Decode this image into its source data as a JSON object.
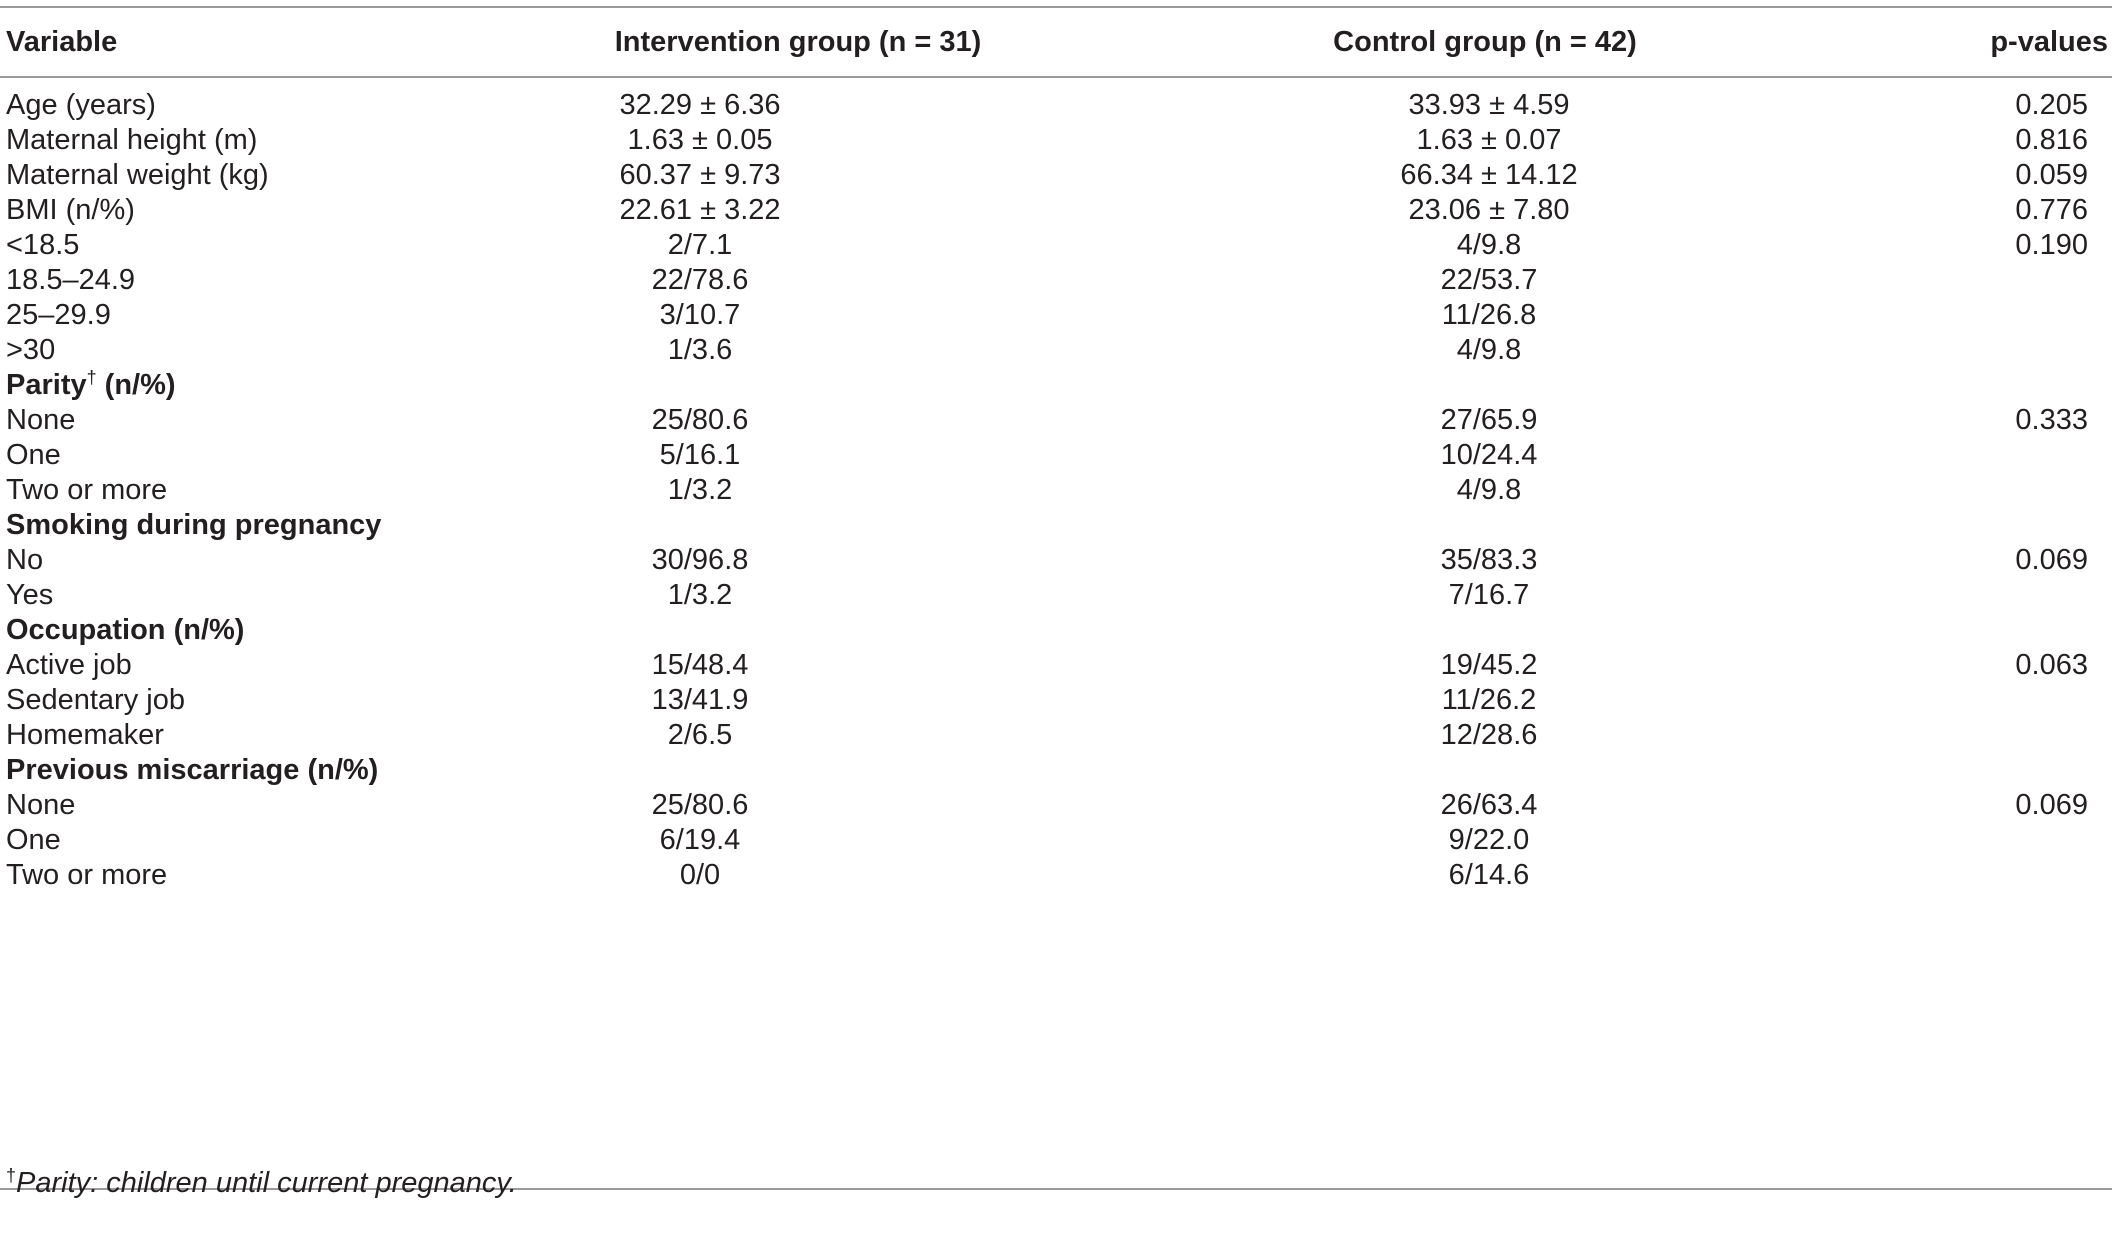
{
  "header": {
    "variable": "Variable",
    "intervention": "Intervention group (n = 31)",
    "control": "Control group (n = 42)",
    "pvalues": "p-values"
  },
  "rows": [
    {
      "label": "Age (years)",
      "intervention": "32.29 ± 6.36",
      "control": "33.93 ± 4.59",
      "p": "0.205",
      "section": false
    },
    {
      "label": "Maternal height (m)",
      "intervention": "1.63 ± 0.05",
      "control": "1.63 ± 0.07",
      "p": "0.816",
      "section": false
    },
    {
      "label": "Maternal weight (kg)",
      "intervention": "60.37 ± 9.73",
      "control": "66.34 ± 14.12",
      "p": "0.059",
      "section": false
    },
    {
      "label": "BMI (n/%)",
      "intervention": "22.61 ± 3.22",
      "control": "23.06 ± 7.80",
      "p": "0.776",
      "section": false
    },
    {
      "label": "<18.5",
      "intervention": "2/7.1",
      "control": "4/9.8",
      "p": "0.190",
      "section": false
    },
    {
      "label": "18.5–24.9",
      "intervention": "22/78.6",
      "control": "22/53.7",
      "p": "",
      "section": false
    },
    {
      "label": "25–29.9",
      "intervention": "3/10.7",
      "control": "11/26.8",
      "p": "",
      "section": false
    },
    {
      "label": ">30",
      "intervention": "1/3.6",
      "control": "4/9.8",
      "p": "",
      "section": false
    },
    {
      "label": "Parity",
      "mark": "†",
      "label_suffix": " (n/%)",
      "intervention": "",
      "control": "",
      "p": "",
      "section": true
    },
    {
      "label": "None",
      "intervention": "25/80.6",
      "control": "27/65.9",
      "p": "0.333",
      "section": false
    },
    {
      "label": "One",
      "intervention": "5/16.1",
      "control": "10/24.4",
      "p": "",
      "section": false
    },
    {
      "label": "Two or more",
      "intervention": "1/3.2",
      "control": "4/9.8",
      "p": "",
      "section": false
    },
    {
      "label": "Smoking during pregnancy",
      "intervention": "",
      "control": "",
      "p": "",
      "section": true
    },
    {
      "label": "No",
      "intervention": "30/96.8",
      "control": "35/83.3",
      "p": "0.069",
      "section": false
    },
    {
      "label": "Yes",
      "intervention": "1/3.2",
      "control": "7/16.7",
      "p": "",
      "section": false
    },
    {
      "label": "Occupation (n/%)",
      "intervention": "",
      "control": "",
      "p": "",
      "section": true
    },
    {
      "label": "Active job",
      "intervention": "15/48.4",
      "control": "19/45.2",
      "p": "0.063",
      "section": false
    },
    {
      "label": "Sedentary job",
      "intervention": "13/41.9",
      "control": "11/26.2",
      "p": "",
      "section": false
    },
    {
      "label": "Homemaker",
      "intervention": "2/6.5",
      "control": "12/28.6",
      "p": "",
      "section": false
    },
    {
      "label": "Previous miscarriage (n/%)",
      "intervention": "",
      "control": "",
      "p": "",
      "section": true
    },
    {
      "label": "None",
      "intervention": "25/80.6",
      "control": "26/63.4",
      "p": "0.069",
      "section": false
    },
    {
      "label": "One",
      "intervention": "6/19.4",
      "control": "9/22.0",
      "p": "",
      "section": false
    },
    {
      "label": "Two or more",
      "intervention": "0/0",
      "control": "6/14.6",
      "p": "",
      "section": false
    }
  ],
  "footnote": {
    "mark": "†",
    "text": "Parity: children until current pregnancy."
  }
}
